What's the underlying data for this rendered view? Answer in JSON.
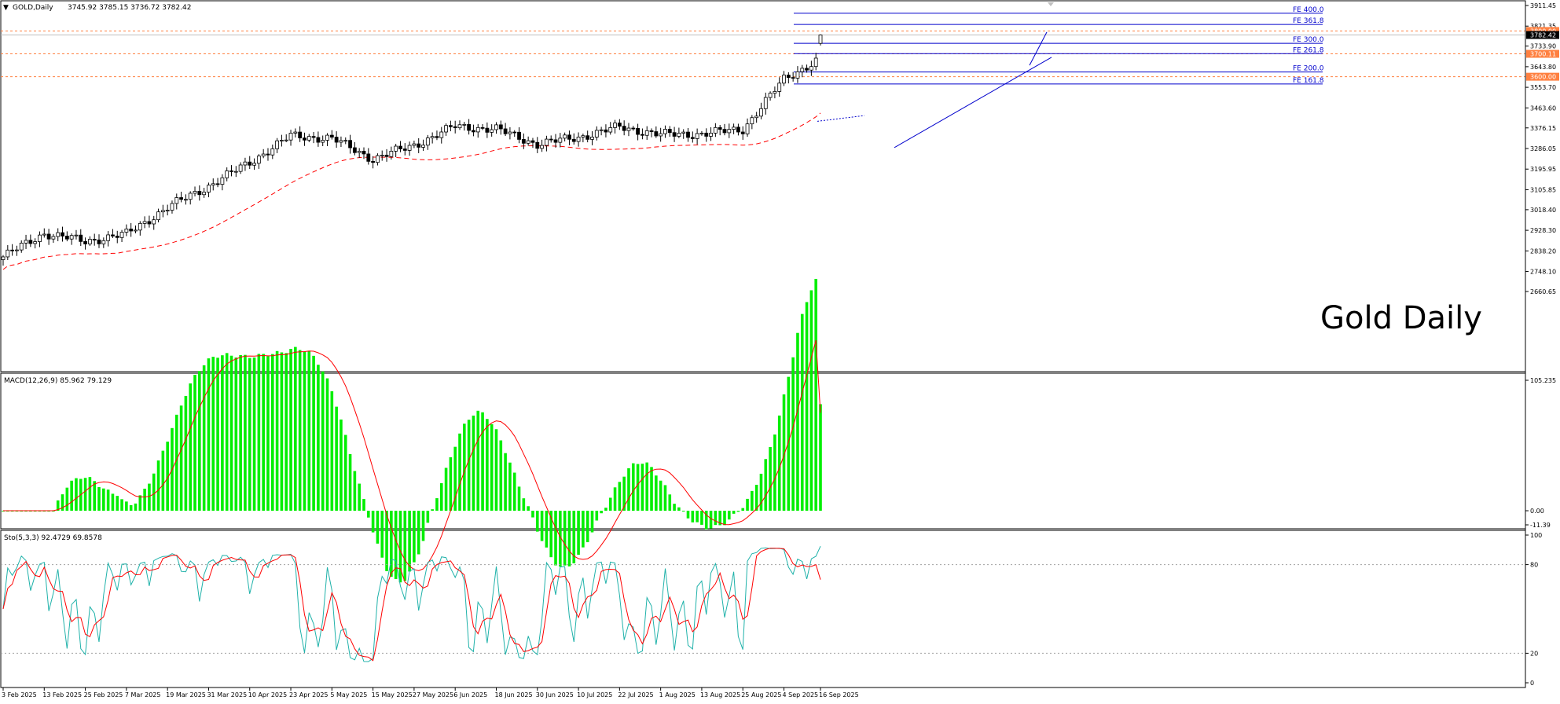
{
  "main": {
    "symbol": "GOLD,Daily",
    "ohlc": "3745.92 3785.15 3736.72 3782.42",
    "watermark": "Gold Daily",
    "menu_arrow": "▼",
    "price_ticks": [
      "3911.45",
      "3821.35",
      "3733.90",
      "3643.80",
      "3553.70",
      "3463.60",
      "3376.15",
      "3286.05",
      "3195.95",
      "3105.85",
      "3018.40",
      "2928.30",
      "2838.20",
      "2748.10",
      "2660.65"
    ],
    "tag_current": "3782.42",
    "tag_3800": "3800.00",
    "tag_3700": "3700.11",
    "tag_3600": "3600.00",
    "fib_labels": [
      "FE 400.0",
      "FE 361.8",
      "FE 300.0",
      "FE 261.8",
      "FE 200.0",
      "FE 161.8"
    ],
    "fib_levels": [
      3877.4,
      3828.6,
      3746.1,
      3700.9,
      3620.5,
      3568.4
    ],
    "colors": {
      "bull": "#ffffff",
      "bear": "#000000",
      "ma": "#ff0000",
      "fib": "#0000cc",
      "level": "#ff8040",
      "grid": "#c0c0c0"
    }
  },
  "macd": {
    "label": "MACD(12,26,9) 85.962 79.129",
    "ticks": [
      "105.235",
      "0.00",
      "-11.39"
    ],
    "colors": {
      "hist": "#00ee00",
      "signal": "#ff0000"
    }
  },
  "stoch": {
    "label": "Sto(5,3,3) 92.4729 69.8578",
    "ticks": [
      "100",
      "80",
      "20",
      "0"
    ],
    "colors": {
      "main": "#20b2aa",
      "signal": "#ff0000",
      "level": "#a0a0a0"
    }
  },
  "time_axis": {
    "labels": [
      "3 Feb 2025",
      "13 Feb 2025",
      "25 Feb 2025",
      "7 Mar 2025",
      "19 Mar 2025",
      "31 Mar 2025",
      "10 Apr 2025",
      "23 Apr 2025",
      "5 May 2025",
      "15 May 2025",
      "27 May 2025",
      "6 Jun 2025",
      "18 Jun 2025",
      "30 Jun 2025",
      "10 Jul 2025",
      "22 Jul 2025",
      "1 Aug 2025",
      "13 Aug 2025",
      "25 Aug 2025",
      "4 Sep 2025",
      "16 Sep 2025"
    ]
  },
  "chart_data": {
    "type": "candlestick",
    "title": "GOLD,Daily",
    "instrument": "GOLD",
    "timeframe": "Daily",
    "ylim": [
      2660.65,
      3911.45
    ],
    "last_bar": {
      "open": 3745.92,
      "high": 3785.15,
      "low": 3736.72,
      "close": 3782.42
    },
    "series": [
      {
        "name": "close",
        "x": [
          "3 Feb 2025",
          "13 Feb 2025",
          "25 Feb 2025",
          "7 Mar 2025",
          "19 Mar 2025",
          "31 Mar 2025",
          "10 Apr 2025",
          "23 Apr 2025",
          "5 May 2025",
          "15 May 2025",
          "27 May 2025",
          "6 Jun 2025",
          "18 Jun 2025",
          "30 Jun 2025",
          "10 Jul 2025",
          "22 Jul 2025",
          "1 Aug 2025",
          "13 Aug 2025",
          "25 Aug 2025",
          "4 Sep 2025",
          "16 Sep 2025"
        ],
        "values": [
          2812,
          2915,
          2880,
          2912,
          3028,
          3122,
          3225,
          3341,
          3330,
          3240,
          3300,
          3383,
          3370,
          3305,
          3335,
          3380,
          3347,
          3350,
          3370,
          3589,
          3680
        ]
      }
    ],
    "price_levels": [
      3800.0,
      3700.11,
      3600.0
    ],
    "fibonacci_expansion": [
      {
        "name": "FE 400.0",
        "value": 3877.4
      },
      {
        "name": "FE 361.8",
        "value": 3828.6
      },
      {
        "name": "FE 300.0",
        "value": 3746.1
      },
      {
        "name": "FE 261.8",
        "value": 3700.9
      },
      {
        "name": "FE 200.0",
        "value": 3620.5
      },
      {
        "name": "FE 161.8",
        "value": 3568.4
      }
    ],
    "indicators": [
      {
        "name": "MACD(12,26,9)",
        "main": 85.962,
        "signal": 79.129,
        "ylim": [
          -11.39,
          105.235
        ]
      },
      {
        "name": "Sto(5,3,3)",
        "main": 92.4729,
        "signal": 69.8578,
        "ylim": [
          0,
          100
        ],
        "levels": [
          80,
          20
        ]
      }
    ]
  }
}
